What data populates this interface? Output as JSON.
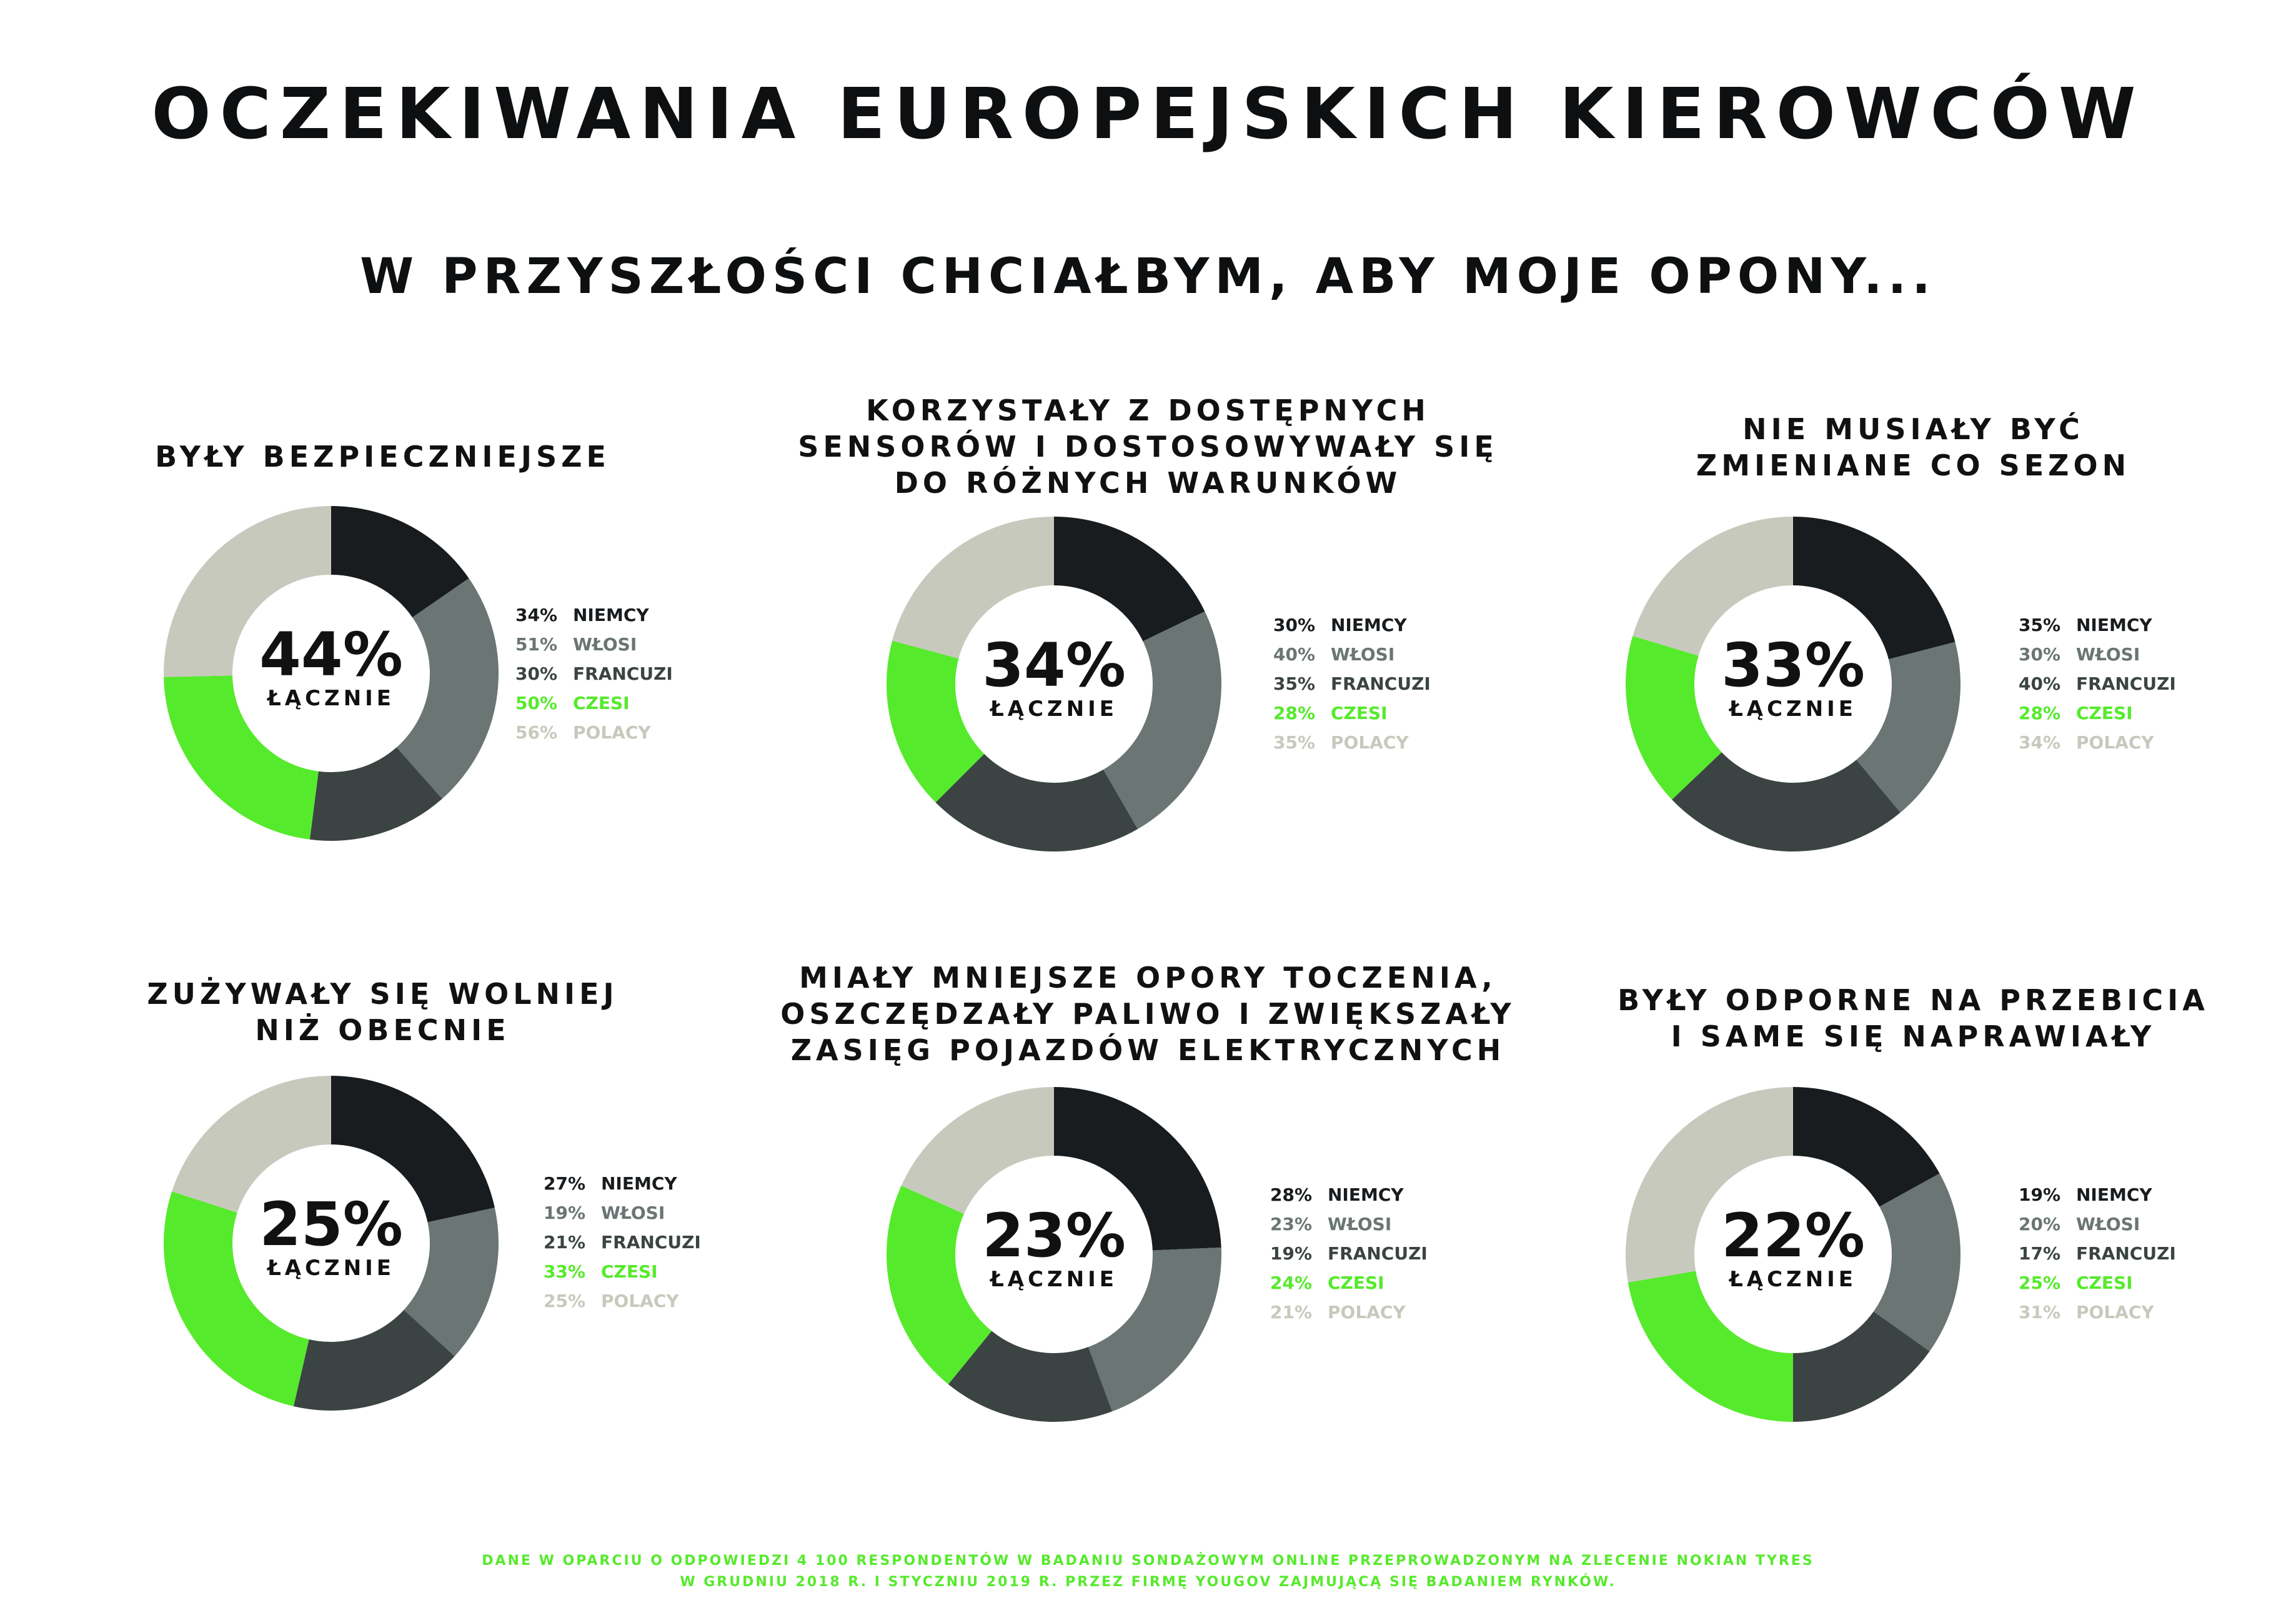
{
  "title": "OCZEKIWANIA EUROPEJSKICH KIEROWCÓW",
  "subtitle": "W PRZYSZŁOŚCI CHCIAŁBYM, ABY MOJE OPONY...",
  "footnote": [
    "DANE W OPARCIU O ODPOWIEDZI 4 100 RESPONDENTÓW W BADANIU SONDAŻOWYM ONLINE PRZEPROWADZONYM NA ZLECENIE NOKIAN TYRES",
    "W GRUDNIU 2018 R. I STYCZNIU 2019 R. PRZEZ FIRMĘ YOUGOV ZAJMUJĄCĄ SIĘ BADANIEM RYNKÓW."
  ],
  "colors": {
    "niemcy": "#191c1e",
    "wlosi": "#6a7574",
    "francuzi": "#3b4443",
    "czesi": "#56ea2c",
    "polacy": "#c8c9bd",
    "footnote": "#56ea2c"
  },
  "chart_data": [
    {
      "type": "pie",
      "title": [
        "BYŁY BEZPIECZNIEJSZE"
      ],
      "total_value": "44%",
      "total_label": "ŁĄCZNIE",
      "categories": [
        "NIEMCY",
        "WŁOSI",
        "FRANCUZI",
        "CZESI",
        "POLACY"
      ],
      "values": [
        34,
        51,
        30,
        50,
        56
      ],
      "value_labels": [
        "34%",
        "51%",
        "30%",
        "50%",
        "56%"
      ]
    },
    {
      "type": "pie",
      "title": [
        "KORZYSTAŁY Z DOSTĘPNYCH",
        "SENSORÓW I DOSTOSOWYWAŁY SIĘ",
        "DO RÓŻNYCH WARUNKÓW"
      ],
      "total_value": "34%",
      "total_label": "ŁĄCZNIE",
      "categories": [
        "NIEMCY",
        "WŁOSI",
        "FRANCUZI",
        "CZESI",
        "POLACY"
      ],
      "values": [
        30,
        40,
        35,
        28,
        35
      ],
      "value_labels": [
        "30%",
        "40%",
        "35%",
        "28%",
        "35%"
      ]
    },
    {
      "type": "pie",
      "title": [
        "NIE MUSIAŁY BYĆ",
        "ZMIENIANE CO SEZON"
      ],
      "total_value": "33%",
      "total_label": "ŁĄCZNIE",
      "categories": [
        "NIEMCY",
        "WŁOSI",
        "FRANCUZI",
        "CZESI",
        "POLACY"
      ],
      "values": [
        35,
        30,
        40,
        28,
        34
      ],
      "value_labels": [
        "35%",
        "30%",
        "40%",
        "28%",
        "34%"
      ]
    },
    {
      "type": "pie",
      "title": [
        "ZUŻYWAŁY SIĘ WOLNIEJ",
        "NIŻ OBECNIE"
      ],
      "total_value": "25%",
      "total_label": "ŁĄCZNIE",
      "categories": [
        "NIEMCY",
        "WŁOSI",
        "FRANCUZI",
        "CZESI",
        "POLACY"
      ],
      "values": [
        27,
        19,
        21,
        33,
        25
      ],
      "value_labels": [
        "27%",
        "19%",
        "21%",
        "33%",
        "25%"
      ]
    },
    {
      "type": "pie",
      "title": [
        "MIAŁY MNIEJSZE OPORY TOCZENIA,",
        "OSZCZĘDZAŁY PALIWO I ZWIĘKSZAŁY",
        "ZASIĘG POJAZDÓW ELEKTRYCZNYCH"
      ],
      "total_value": "23%",
      "total_label": "ŁĄCZNIE",
      "categories": [
        "NIEMCY",
        "WŁOSI",
        "FRANCUZI",
        "CZESI",
        "POLACY"
      ],
      "values": [
        28,
        23,
        19,
        24,
        21
      ],
      "value_labels": [
        "28%",
        "23%",
        "19%",
        "24%",
        "21%"
      ]
    },
    {
      "type": "pie",
      "title": [
        "BYŁY ODPORNE NA PRZEBICIA",
        "I SAME SIĘ NAPRAWIAŁY"
      ],
      "total_value": "22%",
      "total_label": "ŁĄCZNIE",
      "categories": [
        "NIEMCY",
        "WŁOSI",
        "FRANCUZI",
        "CZESI",
        "POLACY"
      ],
      "values": [
        19,
        20,
        17,
        25,
        31
      ],
      "value_labels": [
        "19%",
        "20%",
        "17%",
        "25%",
        "31%"
      ]
    }
  ]
}
